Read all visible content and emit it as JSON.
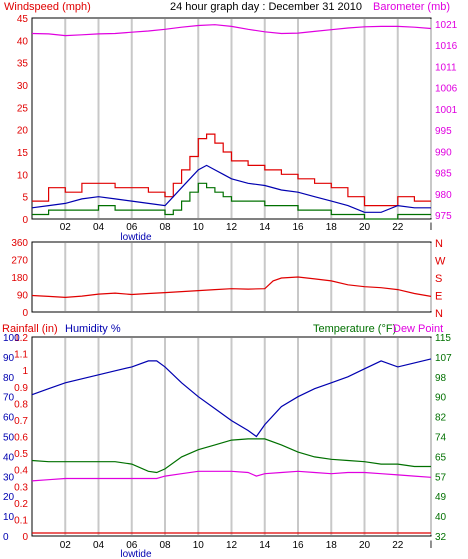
{
  "header": {
    "left": "Windspeed (mph)",
    "center": "24 hour graph day : December 31 2010",
    "right": "Barometer (mb)"
  },
  "colors": {
    "red": "#e00000",
    "blue": "#0000b0",
    "green": "#007000",
    "magenta": "#e000e0",
    "grid": "#c8c8c8",
    "frame": "#000000"
  },
  "x_ticks": [
    "02",
    "04",
    "06",
    "08",
    "10",
    "12",
    "14",
    "16",
    "18",
    "20",
    "22",
    "l"
  ],
  "x_annotation": "lowtide",
  "chart_data": [
    {
      "type": "line",
      "title": "24 hour graph day : December 31 2010",
      "xlabel": "",
      "x_range": [
        0,
        24
      ],
      "left_axis": {
        "label": "Windspeed (mph)",
        "ticks": [
          "0",
          "5",
          "10",
          "15",
          "20",
          "25",
          "30",
          "35",
          "40",
          "45"
        ],
        "ylim": [
          0,
          45
        ]
      },
      "right_axis": {
        "label": "Barometer (mb)",
        "ticks": [
          "975",
          "980",
          "985",
          "990",
          "995",
          "1001",
          "1006",
          "1011",
          "1016",
          "1021"
        ],
        "ylim": [
          975,
          1023
        ]
      },
      "series": [
        {
          "axis": "left",
          "color": "#e00000",
          "style": "step",
          "x": [
            0,
            1,
            2,
            3,
            4,
            5,
            6,
            7,
            8,
            8.5,
            9,
            9.5,
            10,
            10.5,
            11,
            11.5,
            12,
            13,
            14,
            15,
            16,
            17,
            18,
            19,
            20,
            21,
            22,
            23,
            24
          ],
          "y": [
            4,
            7,
            6,
            8,
            8,
            7,
            7,
            6,
            5,
            8,
            11,
            14,
            18,
            19,
            17,
            15,
            13,
            12,
            11,
            10,
            9,
            8,
            7,
            5,
            3,
            3,
            5,
            4,
            4
          ]
        },
        {
          "axis": "left",
          "color": "#0000b0",
          "style": "line",
          "x": [
            0,
            1,
            2,
            3,
            4,
            5,
            6,
            7,
            8,
            8.5,
            9,
            9.5,
            10,
            10.5,
            11,
            11.5,
            12,
            13,
            14,
            15,
            16,
            17,
            18,
            19,
            20,
            21,
            22,
            23,
            24
          ],
          "y": [
            2.5,
            3,
            3.5,
            4.5,
            5,
            4.5,
            4,
            3.5,
            3,
            5,
            7,
            9,
            11,
            12,
            11,
            10,
            9,
            8,
            7.5,
            6.5,
            6,
            5,
            4,
            3,
            1.5,
            1.5,
            3,
            2.5,
            2.5
          ]
        },
        {
          "axis": "left",
          "color": "#007000",
          "style": "step",
          "x": [
            0,
            1,
            2,
            3,
            4,
            5,
            6,
            7,
            8,
            8.5,
            9,
            9.5,
            10,
            10.5,
            11,
            11.5,
            12,
            13,
            14,
            15,
            16,
            17,
            18,
            19,
            20,
            21,
            22,
            23,
            24
          ],
          "y": [
            1,
            2,
            2,
            2,
            3,
            2,
            2,
            2,
            1,
            2,
            4,
            6,
            8,
            7,
            6,
            5,
            4,
            4,
            3,
            3,
            2,
            2,
            1,
            1,
            0,
            0,
            1,
            1,
            1
          ]
        },
        {
          "axis": "right",
          "color": "#e000e0",
          "style": "line",
          "x": [
            0,
            1,
            2,
            3,
            4,
            5,
            6,
            7,
            8,
            9,
            10,
            11,
            12,
            13,
            14,
            15,
            16,
            17,
            18,
            19,
            20,
            21,
            22,
            23,
            24
          ],
          "y": [
            1019.3,
            1019.2,
            1018.8,
            1019.0,
            1019.2,
            1019.3,
            1019.6,
            1019.9,
            1020.3,
            1020.8,
            1021.2,
            1021.4,
            1021.0,
            1020.3,
            1019.7,
            1019.3,
            1019.4,
            1019.8,
            1020.2,
            1020.6,
            1020.9,
            1021.0,
            1021.0,
            1020.8,
            1020.5
          ]
        }
      ]
    },
    {
      "type": "line",
      "xlabel": "",
      "x_range": [
        0,
        24
      ],
      "left_axis": {
        "label": "",
        "ticks": [
          "0",
          "90",
          "180",
          "270",
          "360"
        ],
        "ylim": [
          0,
          360
        ]
      },
      "right_labels": [
        "N",
        "W",
        "S",
        "E",
        "N"
      ],
      "series": [
        {
          "axis": "left",
          "color": "#e00000",
          "style": "line",
          "x": [
            0,
            1,
            2,
            3,
            4,
            5,
            6,
            7,
            8,
            9,
            10,
            11,
            12,
            13,
            14,
            14.5,
            15,
            16,
            17,
            18,
            19,
            20,
            21,
            22,
            23,
            24
          ],
          "y": [
            85,
            80,
            75,
            82,
            92,
            97,
            90,
            95,
            100,
            105,
            110,
            115,
            120,
            118,
            120,
            160,
            175,
            180,
            170,
            160,
            140,
            130,
            125,
            115,
            95,
            80
          ]
        }
      ]
    },
    {
      "type": "line",
      "xlabel": "",
      "x_range": [
        0,
        24
      ],
      "left_axis_outer": {
        "label": "Rainfall (in)",
        "ticks": [
          "0",
          "0.1",
          "0.2",
          "0.3",
          "0.4",
          "0.5",
          "0.6",
          "0.7",
          "0.8",
          "0.9",
          "1",
          "1.1",
          "1.2"
        ],
        "ylim": [
          0,
          1.2
        ]
      },
      "left_axis_inner": {
        "label": "Humidity %",
        "ticks": [
          "0",
          "10",
          "20",
          "30",
          "40",
          "50",
          "60",
          "70",
          "80",
          "90",
          "100"
        ],
        "ylim": [
          0,
          100
        ]
      },
      "right_axis": {
        "label": "Temperature (°F)",
        "ticks": [
          "32",
          "40",
          "49",
          "57",
          "65",
          "74",
          "82",
          "90",
          "98",
          "107",
          "115"
        ],
        "ylim": [
          32,
          115
        ]
      },
      "right_label_2": "Dew Point",
      "series": [
        {
          "name": "Humidity %",
          "axis": "left_inner",
          "color": "#0000b0",
          "style": "line",
          "x": [
            0,
            1,
            2,
            3,
            4,
            5,
            6,
            7,
            7.5,
            8,
            9,
            10,
            11,
            12,
            13,
            13.5,
            14,
            15,
            16,
            17,
            18,
            19,
            20,
            21,
            22,
            23,
            24
          ],
          "y": [
            71,
            74,
            77,
            79,
            81,
            83,
            85,
            88,
            88,
            85,
            77,
            70,
            64,
            58,
            53,
            50,
            56,
            65,
            70,
            74,
            77,
            80,
            84,
            88,
            85,
            87,
            89
          ]
        },
        {
          "name": "Temperature (°F)",
          "axis": "right",
          "color": "#007000",
          "style": "line",
          "x": [
            0,
            1,
            2,
            3,
            4,
            5,
            6,
            7,
            7.5,
            8,
            9,
            10,
            11,
            12,
            13,
            14,
            15,
            16,
            17,
            18,
            19,
            20,
            21,
            22,
            23,
            24
          ],
          "y": [
            63.5,
            63.0,
            63.0,
            63.0,
            63.0,
            63.0,
            62.0,
            59.0,
            58.5,
            60.0,
            65.0,
            68.0,
            70.0,
            72.0,
            72.5,
            72.5,
            70.0,
            67.0,
            65.0,
            64.0,
            63.5,
            63.0,
            62.0,
            62.0,
            61.0,
            61.0
          ]
        },
        {
          "name": "Dew Point",
          "axis": "right",
          "color": "#e000e0",
          "style": "line",
          "x": [
            0,
            1,
            2,
            3,
            4,
            5,
            6,
            7,
            7.5,
            8,
            9,
            10,
            11,
            12,
            13,
            13.5,
            14,
            15,
            16,
            17,
            18,
            19,
            20,
            21,
            22,
            23,
            24
          ],
          "y": [
            55.0,
            55.5,
            56.0,
            56.0,
            56.0,
            56.0,
            56.0,
            56.0,
            56.0,
            57.0,
            58.0,
            59.0,
            59.0,
            59.0,
            58.5,
            57.0,
            58.0,
            58.5,
            59.0,
            58.5,
            58.0,
            58.5,
            58.5,
            58.0,
            57.5,
            57.0,
            56.5
          ]
        },
        {
          "name": "Rainfall (in)",
          "axis": "left_outer",
          "color": "#e00000",
          "style": "line",
          "x": [
            0,
            24
          ],
          "y": [
            0,
            0
          ]
        }
      ]
    }
  ]
}
